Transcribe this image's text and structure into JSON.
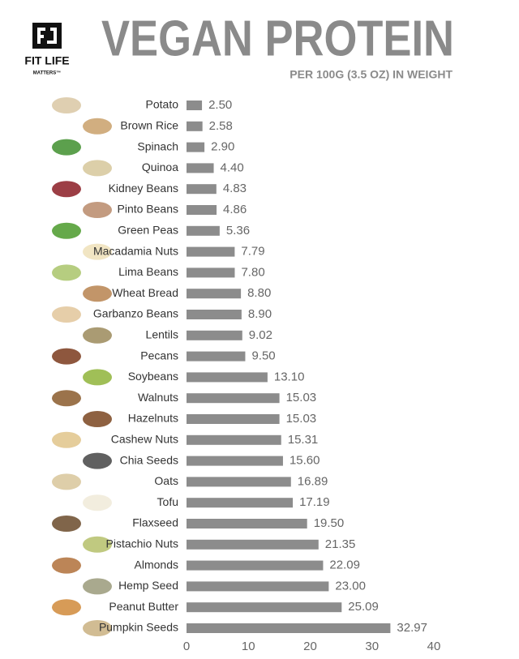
{
  "logo": {
    "name": "FIT LIFE",
    "tagline": "MATTERS™"
  },
  "chart_data": {
    "type": "hbar",
    "title": "VEGAN PROTEIN",
    "subtitle": "PER  100G (3.5 OZ) IN WEIGHT",
    "categories": [
      "Potato",
      "Brown Rice",
      "Spinach",
      "Quinoa",
      "Kidney Beans",
      "Pinto Beans",
      "Green Peas",
      "Macadamia Nuts",
      "Lima Beans",
      "Wheat Bread",
      "Garbanzo Beans",
      "Lentils",
      "Pecans",
      "Soybeans",
      "Walnuts",
      "Hazelnuts",
      "Cashew Nuts",
      "Chia Seeds",
      "Oats",
      "Tofu",
      "Flaxseed",
      "Pistachio Nuts",
      "Almonds",
      "Hemp Seed",
      "Peanut Butter",
      "Pumpkin Seeds"
    ],
    "values": [
      2.5,
      2.58,
      2.9,
      4.4,
      4.83,
      4.86,
      5.36,
      7.79,
      7.8,
      8.8,
      8.9,
      9.02,
      9.5,
      13.1,
      15.03,
      15.03,
      15.31,
      15.6,
      16.89,
      17.19,
      19.5,
      21.35,
      22.09,
      23,
      25.09,
      32.97
    ],
    "value_labels": [
      "2.50",
      "2.58",
      "2.90",
      "4.40",
      "4.83",
      "4.86",
      "5.36",
      "7.79",
      "7.80",
      "8.80",
      "8.90",
      "9.02",
      "9.50",
      "13.10",
      "15.03",
      "15.03",
      "15.31",
      "15.60",
      "16.89",
      "17.19",
      "19.50",
      "21.35",
      "22.09",
      "23.00",
      "25.09",
      "32.97"
    ],
    "color": "#8c8c8c",
    "xlim": [
      0,
      40
    ],
    "xticks": [
      0,
      10,
      20,
      30,
      40
    ],
    "grid": false
  }
}
